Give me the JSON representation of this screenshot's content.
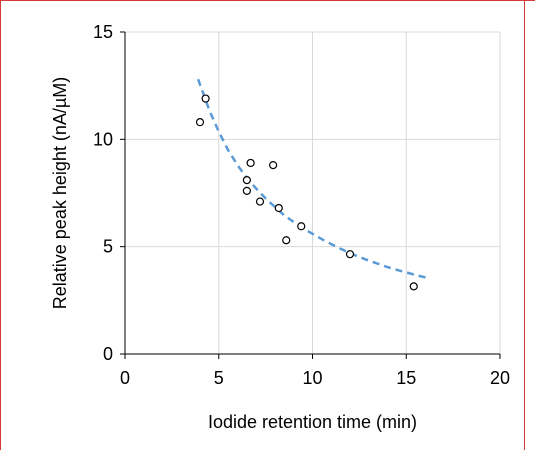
{
  "chart_data": {
    "type": "scatter",
    "title": "",
    "xlabel": "Iodide retention time (min)",
    "ylabel": "Relative peak height (nA/µM)",
    "xlim": [
      0,
      20
    ],
    "ylim": [
      0,
      15
    ],
    "xticks": [
      0,
      5,
      10,
      15,
      20
    ],
    "yticks": [
      0,
      5,
      10,
      15
    ],
    "xtick_labels": [
      "0",
      "5",
      "10",
      "15",
      "20"
    ],
    "ytick_labels": [
      "0",
      "5",
      "10",
      "15"
    ],
    "grid": {
      "x": true,
      "y": true
    },
    "legend": "none",
    "series": [
      {
        "marker": "open-circle",
        "x": [
          4.0,
          4.3,
          6.5,
          6.5,
          6.7,
          7.2,
          7.9,
          8.2,
          8.6,
          9.4,
          12.0,
          15.4
        ],
        "y": [
          10.8,
          11.9,
          8.1,
          7.6,
          8.9,
          7.1,
          8.8,
          6.8,
          5.3,
          5.95,
          4.65,
          3.15
        ]
      }
    ],
    "trendline": {
      "style": "dashed",
      "color": "#5b9bd5",
      "x_range": [
        3.9,
        16.1
      ],
      "x": [
        3.9,
        4.5,
        5.0,
        5.5,
        6.0,
        6.5,
        7.0,
        7.5,
        8.0,
        8.5,
        9.0,
        9.5,
        10.0,
        10.5,
        11.0,
        11.5,
        12.0,
        12.5,
        13.0,
        13.5,
        14.0,
        14.5,
        15.0,
        15.5,
        16.1
      ],
      "y": [
        12.8,
        11.35,
        10.35,
        9.5,
        8.8,
        8.2,
        7.7,
        7.25,
        6.85,
        6.45,
        6.15,
        5.85,
        5.6,
        5.35,
        5.12,
        4.9,
        4.7,
        4.52,
        4.35,
        4.2,
        4.05,
        3.92,
        3.8,
        3.68,
        3.55
      ]
    },
    "colors": {
      "marker_stroke": "#000000",
      "gridline": "#d9d9d9",
      "axis": "#000000",
      "frame": "#d63a3a"
    }
  }
}
